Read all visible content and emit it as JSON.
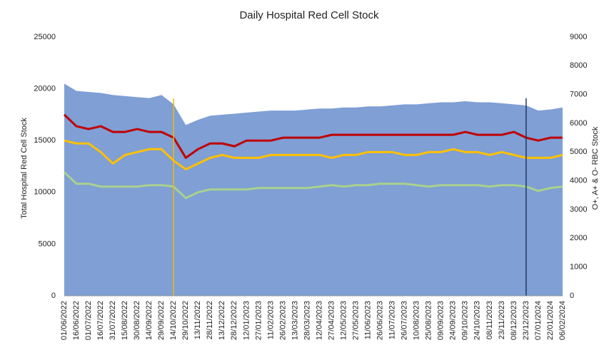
{
  "chart_data": {
    "type": "line",
    "title": "Daily Hospital Red Cell Stock",
    "y_label": "Total Hospital Red Cell Stock",
    "y2_label": "O+, A+ & O- RBC Stock",
    "categories": [
      "01/06/2022",
      "16/06/2022",
      "01/07/2022",
      "16/07/2022",
      "31/07/2022",
      "15/08/2022",
      "30/08/2022",
      "14/09/2022",
      "29/09/2022",
      "14/10/2022",
      "29/10/2022",
      "13/11/2022",
      "28/11/2022",
      "13/12/2022",
      "28/12/2022",
      "12/01/2023",
      "27/01/2023",
      "11/02/2023",
      "26/02/2023",
      "13/03/2023",
      "28/03/2023",
      "12/04/2023",
      "27/04/2023",
      "12/05/2023",
      "27/05/2023",
      "11/06/2023",
      "26/06/2023",
      "11/07/2023",
      "26/07/2023",
      "10/08/2023",
      "25/08/2023",
      "09/09/2023",
      "24/09/2023",
      "09/10/2023",
      "24/10/2023",
      "08/11/2023",
      "23/11/2023",
      "08/12/2023",
      "23/12/2023",
      "07/01/2024",
      "22/01/2024",
      "06/02/2024"
    ],
    "ylim": [
      0,
      25000
    ],
    "yticks": [
      0,
      5000,
      10000,
      15000,
      20000,
      25000
    ],
    "y2lim": [
      0,
      9000
    ],
    "y2ticks": [
      0,
      1000,
      2000,
      3000,
      4000,
      5000,
      6000,
      7000,
      8000,
      9000
    ],
    "series": [
      {
        "type": "area",
        "color": "#7f9fd5",
        "values": [
          20500,
          19800,
          19700,
          19600,
          19400,
          19300,
          19200,
          19100,
          19400,
          18500,
          16500,
          17000,
          17400,
          17500,
          17600,
          17700,
          17800,
          17900,
          17900,
          17900,
          18000,
          18100,
          18100,
          18200,
          18200,
          18300,
          18300,
          18400,
          18500,
          18500,
          18600,
          18700,
          18700,
          18800,
          18700,
          18700,
          18600,
          18500,
          18400,
          17900,
          18000,
          18200
        ]
      },
      {
        "type": "line",
        "axis": "y2",
        "color": "#c00000",
        "values": [
          6300,
          5900,
          5800,
          5900,
          5700,
          5700,
          5800,
          5700,
          5700,
          5500,
          4800,
          5100,
          5300,
          5300,
          5200,
          5400,
          5400,
          5400,
          5500,
          5500,
          5500,
          5500,
          5600,
          5600,
          5600,
          5600,
          5600,
          5600,
          5600,
          5600,
          5600,
          5600,
          5600,
          5700,
          5600,
          5600,
          5600,
          5700,
          5500,
          5400,
          5500,
          5500
        ]
      },
      {
        "type": "line",
        "axis": "y2",
        "color": "#ffc000",
        "values": [
          5400,
          5300,
          5300,
          5000,
          4600,
          4900,
          5000,
          5100,
          5100,
          4700,
          4400,
          4600,
          4800,
          4900,
          4800,
          4800,
          4800,
          4900,
          4900,
          4900,
          4900,
          4900,
          4800,
          4900,
          4900,
          5000,
          5000,
          5000,
          4900,
          4900,
          5000,
          5000,
          5100,
          5000,
          5000,
          4900,
          5000,
          4900,
          4800,
          4800,
          4800,
          4900
        ]
      },
      {
        "type": "line",
        "axis": "y2",
        "color": "#a9d18e",
        "values": [
          4300,
          3900,
          3900,
          3800,
          3800,
          3800,
          3800,
          3850,
          3850,
          3800,
          3400,
          3600,
          3700,
          3700,
          3700,
          3700,
          3750,
          3750,
          3750,
          3750,
          3750,
          3800,
          3850,
          3800,
          3850,
          3850,
          3900,
          3900,
          3900,
          3850,
          3800,
          3850,
          3850,
          3850,
          3850,
          3800,
          3850,
          3850,
          3800,
          3650,
          3750,
          3800
        ]
      }
    ],
    "vlines": [
      {
        "x": "14/10/2022",
        "color": "#f5b800"
      },
      {
        "x": "23/12/2023",
        "color": "#1f3864"
      }
    ]
  }
}
